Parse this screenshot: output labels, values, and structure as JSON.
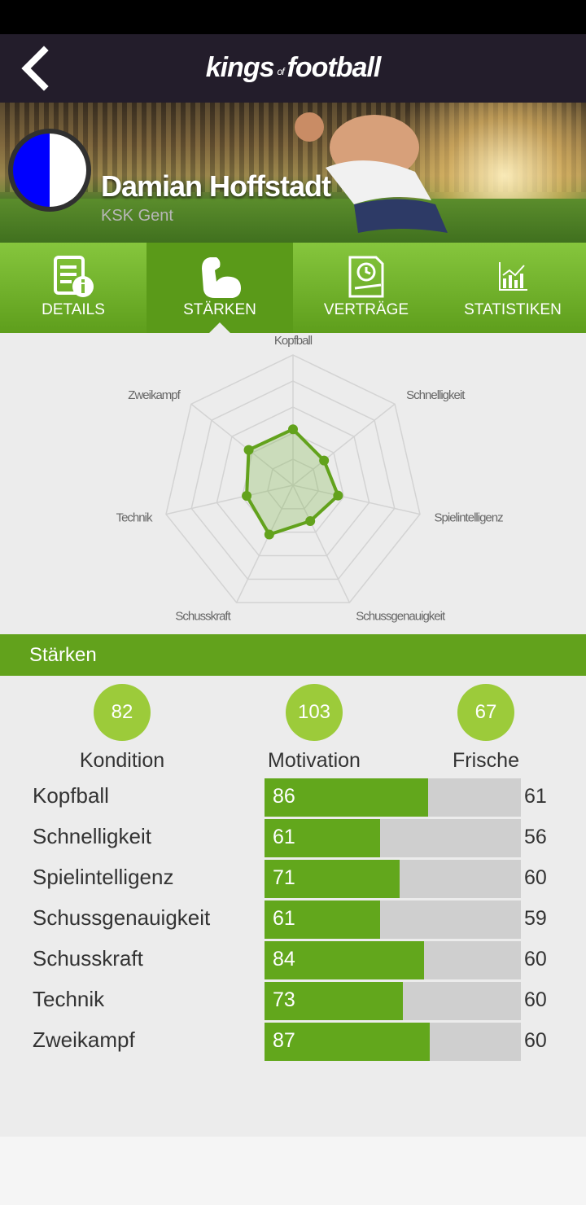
{
  "header": {
    "logo": {
      "kings": "kings",
      "of": "of",
      "football": "football"
    }
  },
  "player": {
    "name": "Damian Hoffstadt",
    "club": "KSK Gent",
    "crest_colors": [
      "#0000ff",
      "#ffffff"
    ]
  },
  "tabs": [
    {
      "label": "DETAILS",
      "icon": "details-document-icon",
      "active": false
    },
    {
      "label": "STÄRKEN",
      "icon": "flexed-arm-icon",
      "active": true
    },
    {
      "label": "VERTRÄGE",
      "icon": "contract-clock-icon",
      "active": false
    },
    {
      "label": "STATISTIKEN",
      "icon": "bar-chart-icon",
      "active": false
    }
  ],
  "radar": {
    "axes": [
      "Kopfball",
      "Schnelligkeit",
      "Spielintelligenz",
      "Schussgenauigkeit",
      "Schusskraft",
      "Technik",
      "Zweikampf"
    ],
    "values": [
      86,
      61,
      71,
      61,
      84,
      73,
      87
    ],
    "max": 200,
    "color": "#62a21c"
  },
  "section": {
    "title": "Stärken"
  },
  "summary": [
    {
      "label": "Kondition",
      "value": "82"
    },
    {
      "label": "Motivation",
      "value": "103"
    },
    {
      "label": "Frische",
      "value": "67"
    }
  ],
  "skills": [
    {
      "name": "Kopfball",
      "value": 86,
      "max": 61
    },
    {
      "name": "Schnelligkeit",
      "value": 61,
      "max": 56
    },
    {
      "name": "Spielintelligenz",
      "value": 71,
      "max": 60
    },
    {
      "name": "Schussgenauigkeit",
      "value": 61,
      "max": 59
    },
    {
      "name": "Schusskraft",
      "value": 84,
      "max": 60
    },
    {
      "name": "Technik",
      "value": 73,
      "max": 60
    },
    {
      "name": "Zweikampf",
      "value": 87,
      "max": 60
    }
  ],
  "bar_scale": 135
}
